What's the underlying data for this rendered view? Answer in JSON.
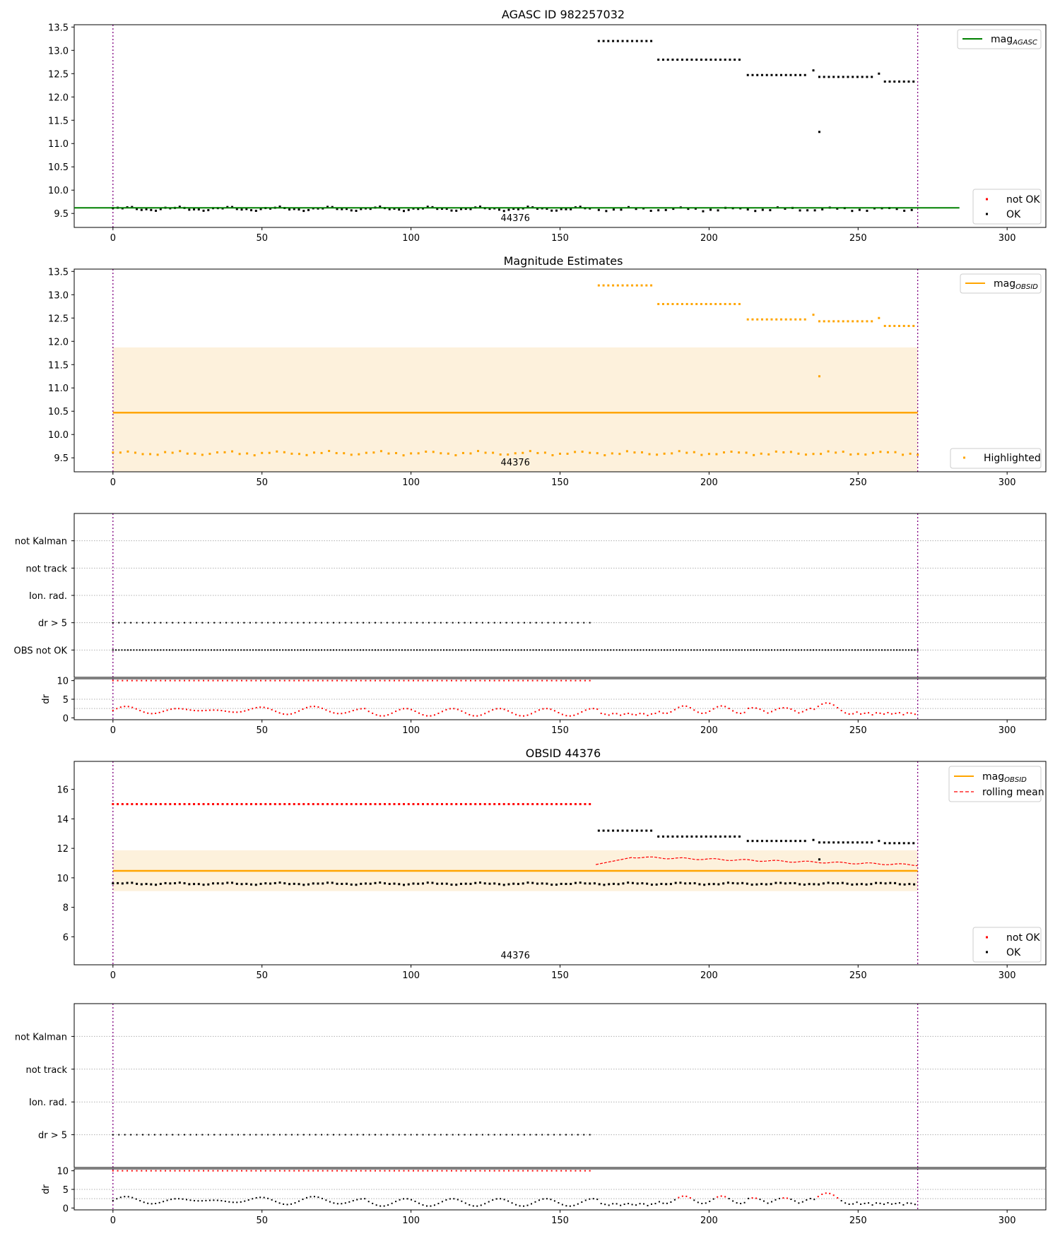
{
  "colors": {
    "ok": "#000000",
    "not_ok": "#ff0000",
    "agasc_line": "#008000",
    "obsid_line": "#ffa500",
    "band": "#fdf1dc",
    "vline": "#800080",
    "grid": "#b0b0b0"
  },
  "chart_data": [
    {
      "id": "agasc",
      "type": "scatter",
      "title": "AGASC ID 982257032",
      "xlim": [
        -13,
        313
      ],
      "ylim": [
        9.2,
        13.55
      ],
      "xticks": [
        0,
        50,
        100,
        150,
        200,
        250,
        300
      ],
      "yticks": [
        9.5,
        10.0,
        10.5,
        11.0,
        11.5,
        12.0,
        12.5,
        13.0,
        13.5
      ],
      "vlines": [
        0,
        270
      ],
      "obsid_label": "44376",
      "line": {
        "name": "mag_AGASC",
        "y": 9.62,
        "x_range": [
          -13,
          284
        ]
      },
      "legend_line": {
        "base": "mag",
        "sub": "AGASC"
      },
      "legend_points": [
        "not OK",
        "OK"
      ],
      "series": [
        {
          "name": "OK",
          "segments": [
            {
              "x0": 0,
              "x1": 161,
              "step": 1.6,
              "y": 9.6,
              "amp": 0.03
            },
            {
              "x0": 163,
              "x1": 181,
              "step": 1.6,
              "y": 13.2,
              "amp": 0
            },
            {
              "x0": 183,
              "x1": 211,
              "step": 1.6,
              "y": 12.8,
              "amp": 0
            },
            {
              "x0": 213,
              "x1": 233,
              "step": 1.6,
              "y": 12.47,
              "amp": 0
            },
            {
              "x0": 237,
              "x1": 255,
              "step": 1.6,
              "y": 12.43,
              "amp": 0
            },
            {
              "x0": 259,
              "x1": 270,
              "step": 1.6,
              "y": 12.33,
              "amp": 0
            },
            {
              "x0": 163,
              "x1": 270,
              "step": 2.5,
              "y": 9.59,
              "amp": 0.03
            }
          ],
          "points": [
            [
              235,
              12.57
            ],
            [
              237,
              11.25
            ],
            [
              257,
              12.5
            ]
          ]
        }
      ]
    },
    {
      "id": "magest",
      "type": "scatter",
      "title": "Magnitude Estimates",
      "xlim": [
        -13,
        313
      ],
      "ylim": [
        9.2,
        13.55
      ],
      "xticks": [
        0,
        50,
        100,
        150,
        200,
        250,
        300
      ],
      "yticks": [
        9.5,
        10.0,
        10.5,
        11.0,
        11.5,
        12.0,
        12.5,
        13.0,
        13.5
      ],
      "vlines": [
        0,
        270
      ],
      "obsid_label": "44376",
      "line": {
        "name": "mag_OBSID",
        "y": 10.47,
        "x_range": [
          0,
          270
        ]
      },
      "band": {
        "y0": 9.2,
        "y1": 11.87,
        "x_range": [
          0,
          270
        ]
      },
      "legend_line": {
        "base": "mag",
        "sub": "OBSID"
      },
      "legend_points": [
        "Highlighted"
      ],
      "series": [
        {
          "name": "Highlighted",
          "segments": [
            {
              "x0": 0,
              "x1": 270,
              "step": 2.5,
              "y": 9.6,
              "amp": 0.03
            },
            {
              "x0": 163,
              "x1": 181,
              "step": 1.6,
              "y": 13.2,
              "amp": 0
            },
            {
              "x0": 183,
              "x1": 211,
              "step": 1.6,
              "y": 12.8,
              "amp": 0
            },
            {
              "x0": 213,
              "x1": 233,
              "step": 1.6,
              "y": 12.47,
              "amp": 0
            },
            {
              "x0": 237,
              "x1": 255,
              "step": 1.6,
              "y": 12.43,
              "amp": 0
            },
            {
              "x0": 259,
              "x1": 270,
              "step": 1.6,
              "y": 12.33,
              "amp": 0
            }
          ],
          "points": [
            [
              235,
              12.57
            ],
            [
              237,
              11.25
            ],
            [
              257,
              12.5
            ]
          ]
        }
      ]
    },
    {
      "id": "flags1",
      "type": "scatter",
      "categories": [
        "not Kalman",
        "not track",
        "Ion. rad.",
        "dr > 5",
        "OBS not OK"
      ],
      "xlim": [
        -13,
        313
      ],
      "vlines": [
        0,
        270
      ],
      "rows": [
        {
          "category": "dr > 5",
          "x0": 0,
          "x1": 161,
          "step": 2.0
        },
        {
          "category": "OBS not OK",
          "x0": 0,
          "x1": 270,
          "step": 1.0
        }
      ]
    },
    {
      "id": "dr1",
      "type": "scatter",
      "ylabel": "dr",
      "xlim": [
        -13,
        313
      ],
      "ylim": [
        -0.5,
        10.5
      ],
      "yticks": [
        0,
        5,
        10
      ],
      "xticks": [
        0,
        50,
        100,
        150,
        200,
        250,
        300
      ],
      "vlines": [
        0,
        270
      ],
      "series": [
        {
          "name": "dr10",
          "color": "not_ok",
          "x0": 0,
          "x1": 161,
          "step": 1.6,
          "y": 10
        },
        {
          "name": "dr",
          "color": "not_ok",
          "x0": 0,
          "x1": 270,
          "step": 1.3
        }
      ]
    },
    {
      "id": "obsid",
      "type": "scatter",
      "title": "OBSID 44376",
      "xlim": [
        -13,
        313
      ],
      "ylim": [
        4.1,
        17.9
      ],
      "xticks": [
        0,
        50,
        100,
        150,
        200,
        250,
        300
      ],
      "yticks": [
        6,
        8,
        10,
        12,
        14,
        16
      ],
      "vlines": [
        0,
        270
      ],
      "obsid_label": "44376",
      "line": {
        "name": "mag_OBSID",
        "y": 10.47,
        "x_range": [
          0,
          270
        ]
      },
      "band": {
        "y0": 9.1,
        "y1": 11.87,
        "x_range": [
          0,
          270
        ]
      },
      "legend_line": {
        "base": "mag",
        "sub": "OBSID"
      },
      "legend_dash": "rolling mean",
      "legend_points": [
        "not OK",
        "OK"
      ],
      "rolling_mean": {
        "x0": 162,
        "x1": 270,
        "step": 1.0
      },
      "series": [
        {
          "name": "not OK",
          "segments": [
            {
              "x0": 0,
              "x1": 161,
              "step": 1.6,
              "y": 15.0,
              "amp": 0
            }
          ]
        },
        {
          "name": "OK",
          "segments": [
            {
              "x0": 0,
              "x1": 270,
              "step": 1.6,
              "y": 9.6,
              "amp": 0.05
            },
            {
              "x0": 163,
              "x1": 181,
              "step": 1.6,
              "y": 13.2,
              "amp": 0
            },
            {
              "x0": 183,
              "x1": 211,
              "step": 1.6,
              "y": 12.8,
              "amp": 0
            },
            {
              "x0": 213,
              "x1": 233,
              "step": 1.6,
              "y": 12.5,
              "amp": 0
            },
            {
              "x0": 237,
              "x1": 255,
              "step": 1.6,
              "y": 12.4,
              "amp": 0
            },
            {
              "x0": 259,
              "x1": 270,
              "step": 1.6,
              "y": 12.35,
              "amp": 0
            }
          ],
          "points": [
            [
              235,
              12.57
            ],
            [
              237,
              11.25
            ],
            [
              257,
              12.5
            ]
          ]
        }
      ]
    },
    {
      "id": "flags2",
      "type": "scatter",
      "categories": [
        "not Kalman",
        "not track",
        "Ion. rad.",
        "dr > 5"
      ],
      "xlim": [
        -13,
        313
      ],
      "vlines": [
        0,
        270
      ],
      "rows": [
        {
          "category": "dr > 5",
          "x0": 0,
          "x1": 161,
          "step": 2.0
        }
      ]
    },
    {
      "id": "dr2",
      "type": "scatter",
      "ylabel": "dr",
      "xlim": [
        -13,
        313
      ],
      "ylim": [
        -0.5,
        10.5
      ],
      "yticks": [
        0,
        5,
        10
      ],
      "xticks": [
        0,
        50,
        100,
        150,
        200,
        250,
        300
      ],
      "vlines": [
        0,
        270
      ],
      "series": [
        {
          "name": "dr10",
          "color": "not_ok",
          "x0": 0,
          "x1": 161,
          "step": 1.6,
          "y": 10
        },
        {
          "name": "dr",
          "color": "mixed",
          "x0": 0,
          "x1": 270,
          "step": 1.3
        }
      ]
    }
  ]
}
